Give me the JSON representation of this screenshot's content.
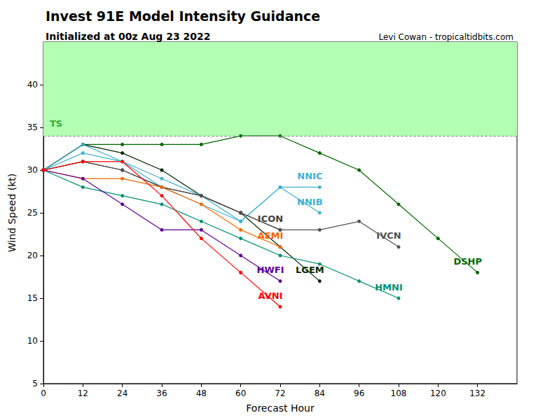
{
  "chart_data": {
    "type": "line",
    "title": "Invest 91E Model Intensity Guidance",
    "subtitle": "Initialized at 00z Aug 23 2022",
    "credit": "Levi Cowan - tropicaltidbits.com",
    "x_label": "Forecast Hour",
    "y_label": "Wind Speed (kt)",
    "xlim": [
      0,
      144
    ],
    "xticks": [
      0,
      12,
      24,
      36,
      48,
      60,
      72,
      84,
      96,
      108,
      120,
      132
    ],
    "ylim": [
      5,
      45
    ],
    "yticks": [
      5,
      10,
      15,
      20,
      25,
      30,
      35,
      40
    ],
    "grid": false,
    "marker": "circle",
    "threshold": {
      "value": 34,
      "label": "TS",
      "color": "#b3ffb3"
    },
    "series": [
      {
        "name": "DSHP",
        "color": "#006400",
        "x": [
          0,
          12,
          24,
          36,
          48,
          60,
          72,
          84,
          96,
          108,
          120,
          132
        ],
        "values": [
          30,
          33,
          33,
          33,
          33,
          34,
          34,
          32,
          30,
          26,
          22,
          18
        ]
      },
      {
        "name": "LGEM",
        "color": "#002800",
        "x": [
          0,
          12,
          24,
          36,
          48,
          60,
          72,
          84
        ],
        "values": [
          30,
          33,
          32,
          30,
          27,
          25,
          21,
          17
        ]
      },
      {
        "name": "NNIC",
        "color": "#3fb0cf",
        "x": [
          0,
          12,
          24,
          36,
          48,
          60,
          72,
          84
        ],
        "values": [
          30,
          33,
          31,
          29,
          27,
          24,
          28,
          28
        ]
      },
      {
        "name": "NNIB",
        "color": "#3fb0cf",
        "x": [
          0,
          12,
          24,
          36,
          48,
          60,
          72,
          84
        ],
        "values": [
          30,
          32,
          31,
          28,
          26,
          24,
          28,
          25
        ]
      },
      {
        "name": "ICON",
        "color": "#404040",
        "x": [
          0,
          12,
          24,
          36,
          48,
          60,
          72
        ],
        "values": [
          30,
          31,
          30,
          28,
          27,
          25,
          23
        ]
      },
      {
        "name": "IVCN",
        "color": "#505050",
        "x": [
          0,
          12,
          24,
          36,
          48,
          60,
          72,
          84,
          96,
          108
        ],
        "values": [
          30,
          31,
          30,
          28,
          27,
          25,
          23,
          23,
          24,
          21
        ]
      },
      {
        "name": "AEMI",
        "color": "#ff6600",
        "x": [
          0,
          12,
          24,
          36,
          48,
          60,
          72
        ],
        "values": [
          30,
          29,
          29,
          28,
          26,
          23,
          21
        ]
      },
      {
        "name": "HMNI",
        "color": "#009070",
        "x": [
          0,
          12,
          24,
          36,
          48,
          60,
          72,
          84,
          96,
          108
        ],
        "values": [
          30,
          28,
          27,
          26,
          24,
          22,
          20,
          19,
          17,
          15
        ]
      },
      {
        "name": "HWFI",
        "color": "#5c0090",
        "x": [
          0,
          12,
          24,
          36,
          48,
          60,
          72
        ],
        "values": [
          30,
          29,
          26,
          23,
          23,
          20,
          17
        ]
      },
      {
        "name": "AVNI",
        "color": "#ff0000",
        "x": [
          0,
          12,
          24,
          36,
          48,
          60,
          72
        ],
        "values": [
          30,
          31,
          31,
          27,
          22,
          18,
          14
        ]
      }
    ]
  }
}
